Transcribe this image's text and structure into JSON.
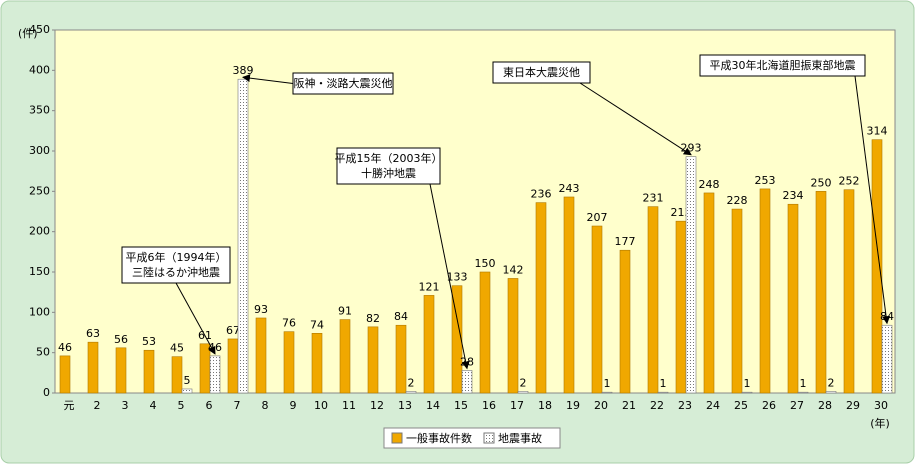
{
  "chart_data": {
    "type": "bar",
    "y_label": "(件)",
    "x_label": "(年)",
    "categories": [
      "元",
      "2",
      "3",
      "4",
      "5",
      "6",
      "7",
      "8",
      "9",
      "10",
      "11",
      "12",
      "13",
      "14",
      "15",
      "16",
      "17",
      "18",
      "19",
      "20",
      "21",
      "22",
      "23",
      "24",
      "25",
      "26",
      "27",
      "28",
      "29",
      "30"
    ],
    "series": [
      {
        "name": "一般事故件数",
        "color": "#f0a800",
        "pattern": "solid",
        "values": [
          46,
          63,
          56,
          53,
          45,
          61,
          67,
          93,
          76,
          74,
          91,
          82,
          84,
          121,
          133,
          150,
          142,
          236,
          243,
          207,
          177,
          231,
          213,
          248,
          228,
          253,
          234,
          250,
          252,
          314
        ]
      },
      {
        "name": "地震事故",
        "color": "#ffffff",
        "pattern": "dotted",
        "values": [
          null,
          null,
          null,
          null,
          5,
          46,
          389,
          null,
          null,
          null,
          null,
          null,
          2,
          null,
          28,
          null,
          2,
          null,
          null,
          1,
          null,
          1,
          293,
          null,
          1,
          null,
          1,
          2,
          null,
          84
        ]
      }
    ],
    "ylim": [
      0,
      450
    ],
    "yticks": [
      0,
      50,
      100,
      150,
      200,
      250,
      300,
      350,
      400,
      450
    ],
    "grid": false,
    "legend": "bottom",
    "annotations": [
      {
        "lines": [
          "平成6年（1994年）",
          "三陸はるか沖地震"
        ]
      },
      {
        "lines": [
          "阪神・淡路大震災他"
        ]
      },
      {
        "lines": [
          "平成15年（2003年）",
          "十勝沖地震"
        ]
      },
      {
        "lines": [
          "東日本大震災他"
        ]
      },
      {
        "lines": [
          "平成30年北海道胆振東部地震"
        ]
      }
    ]
  }
}
